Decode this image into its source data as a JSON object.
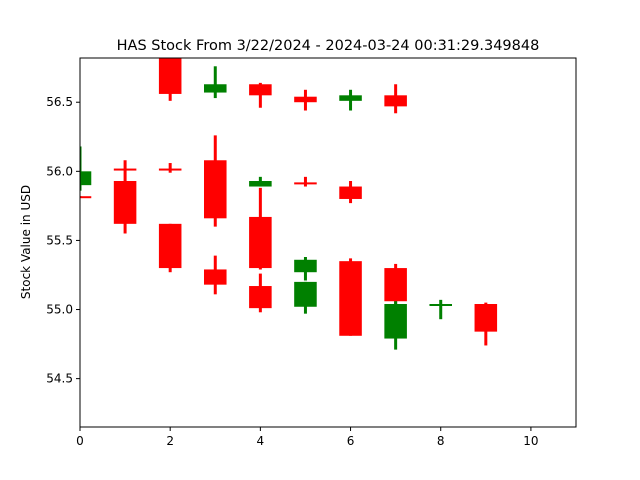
{
  "chart_data": {
    "type": "candlestick",
    "title": "HAS Stock From 3/22/2024 - 2024-03-24 00:31:29.349848",
    "xlabel": "",
    "ylabel": "Stock Value in USD",
    "xlim": [
      0,
      11
    ],
    "ylim": [
      54.15,
      56.82
    ],
    "x_ticks": [
      0,
      2,
      4,
      6,
      8,
      10
    ],
    "y_ticks": [
      54.5,
      55.0,
      55.5,
      56.0,
      56.5
    ],
    "y_tick_labels": [
      "54.5",
      "55.0",
      "55.5",
      "56.0",
      "56.5"
    ],
    "grid": false,
    "colors": {
      "up": "#008000",
      "down": "#ff0000"
    },
    "candles": [
      {
        "x": 0,
        "open": 55.9,
        "close": 56.0,
        "high": 56.18,
        "low": 55.86
      },
      {
        "x": 0,
        "open": 55.82,
        "close": 55.81,
        "high": 55.82,
        "low": 55.81
      },
      {
        "x": 1,
        "open": 56.02,
        "close": 56.01,
        "high": 56.02,
        "low": 56.01
      },
      {
        "x": 1,
        "open": 55.93,
        "close": 55.62,
        "high": 56.08,
        "low": 55.55
      },
      {
        "x": 2,
        "open": 56.82,
        "close": 56.56,
        "high": 56.82,
        "low": 56.51
      },
      {
        "x": 2,
        "open": 56.02,
        "close": 56.01,
        "high": 56.06,
        "low": 55.99
      },
      {
        "x": 2,
        "open": 55.62,
        "close": 55.3,
        "high": 55.62,
        "low": 55.27
      },
      {
        "x": 3,
        "open": 56.57,
        "close": 56.63,
        "high": 56.76,
        "low": 56.53
      },
      {
        "x": 3,
        "open": 56.08,
        "close": 55.66,
        "high": 56.26,
        "low": 55.6
      },
      {
        "x": 3,
        "open": 55.29,
        "close": 55.18,
        "high": 55.39,
        "low": 55.11
      },
      {
        "x": 4,
        "open": 56.63,
        "close": 56.55,
        "high": 56.64,
        "low": 56.46
      },
      {
        "x": 4,
        "open": 55.89,
        "close": 55.93,
        "high": 55.96,
        "low": 55.89
      },
      {
        "x": 4,
        "open": 55.67,
        "close": 55.3,
        "high": 55.88,
        "low": 55.29
      },
      {
        "x": 4,
        "open": 55.17,
        "close": 55.01,
        "high": 55.26,
        "low": 54.98
      },
      {
        "x": 5,
        "open": 56.54,
        "close": 56.5,
        "high": 56.59,
        "low": 56.44
      },
      {
        "x": 5,
        "open": 55.92,
        "close": 55.91,
        "high": 55.96,
        "low": 55.89
      },
      {
        "x": 5,
        "open": 55.27,
        "close": 55.36,
        "high": 55.38,
        "low": 55.21
      },
      {
        "x": 5,
        "open": 55.02,
        "close": 55.2,
        "high": 55.2,
        "low": 54.97
      },
      {
        "x": 6,
        "open": 56.51,
        "close": 56.55,
        "high": 56.59,
        "low": 56.44
      },
      {
        "x": 6,
        "open": 55.89,
        "close": 55.8,
        "high": 55.93,
        "low": 55.77
      },
      {
        "x": 6,
        "open": 55.35,
        "close": 54.81,
        "high": 55.37,
        "low": 54.81
      },
      {
        "x": 7,
        "open": 56.55,
        "close": 56.47,
        "high": 56.63,
        "low": 56.42
      },
      {
        "x": 7,
        "open": 55.3,
        "close": 55.06,
        "high": 55.33,
        "low": 55.04
      },
      {
        "x": 7,
        "open": 54.79,
        "close": 55.04,
        "high": 55.06,
        "low": 54.71
      },
      {
        "x": 8,
        "open": 55.03,
        "close": 55.04,
        "high": 55.07,
        "low": 54.93
      },
      {
        "x": 9,
        "open": 55.04,
        "close": 54.84,
        "high": 55.05,
        "low": 54.74
      }
    ]
  }
}
